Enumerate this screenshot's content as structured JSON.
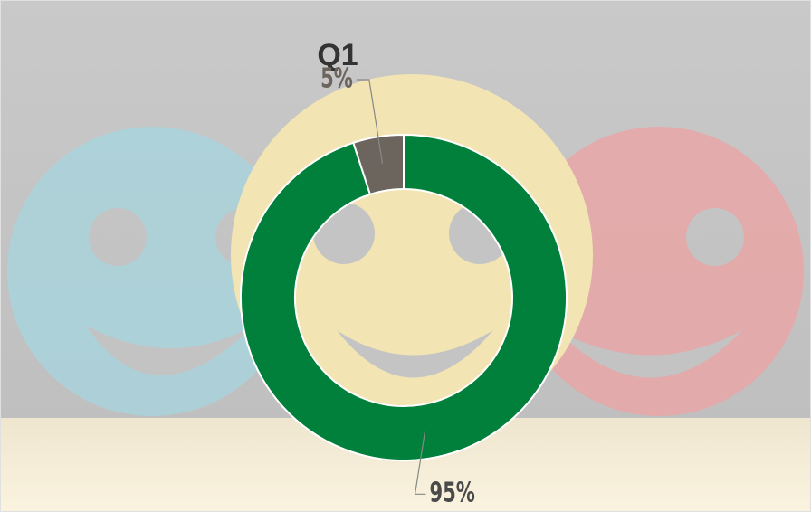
{
  "chart_data": {
    "type": "donut",
    "title": "Q1",
    "values": [
      95,
      5
    ],
    "value_labels": [
      "95%",
      "5%"
    ],
    "colors": [
      "#00803a",
      "#6b655e"
    ]
  }
}
